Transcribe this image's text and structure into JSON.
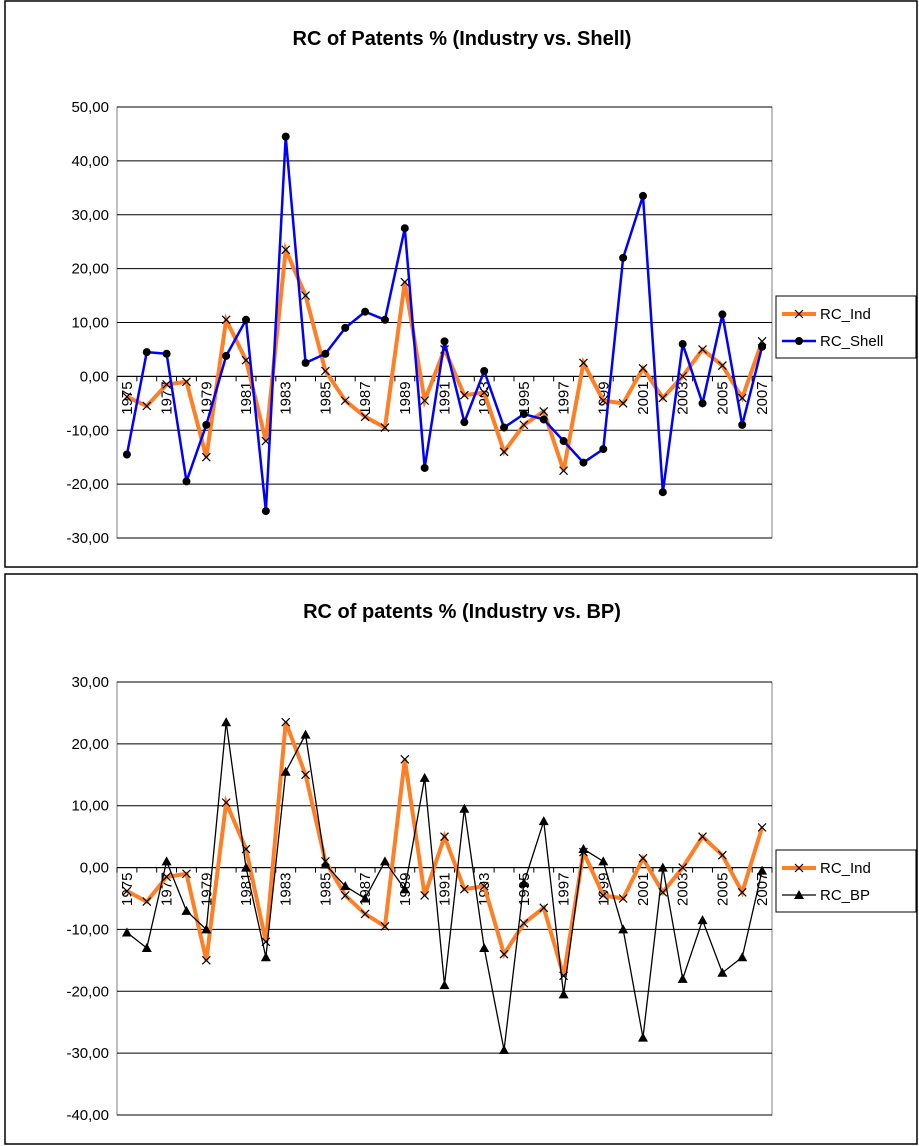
{
  "chart_data": [
    {
      "type": "line",
      "title": "RC of Patents % (Industry vs. Shell)",
      "xlabel": "",
      "ylabel": "",
      "ylim": [
        -30,
        50
      ],
      "ytick_step": 10,
      "ytick_labels": [
        "50,00",
        "40,00",
        "30,00",
        "20,00",
        "10,00",
        "0,00",
        "-10,00",
        "-20,00",
        "-30,00"
      ],
      "x": [
        1975,
        1976,
        1977,
        1978,
        1979,
        1980,
        1981,
        1982,
        1983,
        1984,
        1985,
        1986,
        1987,
        1988,
        1989,
        1990,
        1991,
        1992,
        1993,
        1994,
        1995,
        1996,
        1997,
        1998,
        1999,
        2000,
        2001,
        2002,
        2003,
        2004,
        2005,
        2006,
        2007
      ],
      "xtick_labels": [
        "1975",
        "1977",
        "1979",
        "1981",
        "1983",
        "1985",
        "1987",
        "1989",
        "1991",
        "1993",
        "1995",
        "1997",
        "1999",
        "2001",
        "2003",
        "2005",
        "2007"
      ],
      "grid": true,
      "legend_position": "right",
      "series": [
        {
          "name": "RC_Ind",
          "color": "#ff7f27",
          "marker": "x",
          "values": [
            -3.8,
            -5.5,
            -1.5,
            -1.0,
            -15.0,
            10.5,
            3.0,
            -12.0,
            23.5,
            15.0,
            1.0,
            -4.5,
            -7.5,
            -9.5,
            17.5,
            -4.5,
            5.0,
            -3.5,
            -3.0,
            -14.0,
            -9.0,
            -6.5,
            -17.5,
            2.5,
            -4.5,
            -5.0,
            1.5,
            -4.0,
            0.0,
            5.0,
            2.0,
            -4.0,
            6.5
          ]
        },
        {
          "name": "RC_Shell",
          "color": "#0000ff",
          "marker": "circle",
          "values": [
            -14.5,
            4.5,
            4.2,
            -19.5,
            -9.0,
            3.8,
            10.5,
            -25.0,
            44.5,
            2.5,
            4.2,
            9.0,
            12.0,
            10.5,
            27.5,
            -17.0,
            6.5,
            -8.5,
            1.0,
            -9.5,
            -7.0,
            -8.0,
            -12.0,
            -16.0,
            -13.5,
            22.0,
            33.5,
            -21.5,
            6.0,
            -5.0,
            11.5,
            -9.0,
            5.5
          ]
        }
      ]
    },
    {
      "type": "line",
      "title": "RC of patents % (Industry vs. BP)",
      "xlabel": "",
      "ylabel": "",
      "ylim": [
        -40,
        30
      ],
      "ytick_step": 10,
      "ytick_labels": [
        "30,00",
        "20,00",
        "10,00",
        "0,00",
        "-10,00",
        "-20,00",
        "-30,00",
        "-40,00"
      ],
      "x": [
        1975,
        1976,
        1977,
        1978,
        1979,
        1980,
        1981,
        1982,
        1983,
        1984,
        1985,
        1986,
        1987,
        1988,
        1989,
        1990,
        1991,
        1992,
        1993,
        1994,
        1995,
        1996,
        1997,
        1998,
        1999,
        2000,
        2001,
        2002,
        2003,
        2004,
        2005,
        2006,
        2007
      ],
      "xtick_labels": [
        "1975",
        "1977",
        "1979",
        "1981",
        "1983",
        "1985",
        "1987",
        "1989",
        "1991",
        "1993",
        "1995",
        "1997",
        "1999",
        "2001",
        "2003",
        "2005",
        "2007"
      ],
      "grid": true,
      "legend_position": "right",
      "series": [
        {
          "name": "RC_Ind",
          "color": "#ff7f27",
          "marker": "x",
          "values": [
            -3.8,
            -5.5,
            -1.5,
            -1.0,
            -15.0,
            10.5,
            3.0,
            -12.0,
            23.5,
            15.0,
            1.0,
            -4.5,
            -7.5,
            -9.5,
            17.5,
            -4.5,
            5.0,
            -3.5,
            -3.0,
            -14.0,
            -9.0,
            -6.5,
            -17.5,
            2.5,
            -4.5,
            -5.0,
            1.5,
            -4.0,
            0.0,
            5.0,
            2.0,
            -4.0,
            6.5
          ]
        },
        {
          "name": "RC_BP",
          "color": "#000000",
          "marker": "triangle",
          "values": [
            -10.5,
            -13.0,
            1.0,
            -7.0,
            -10.0,
            23.5,
            0.0,
            -14.5,
            15.5,
            21.5,
            0.5,
            -3.0,
            -5.0,
            1.0,
            -3.5,
            14.5,
            -19.0,
            9.5,
            -13.0,
            -29.5,
            -2.5,
            7.5,
            -20.5,
            3.0,
            1.0,
            -10.0,
            -27.5,
            0.0,
            -18.0,
            -8.5,
            -17.0,
            -14.5,
            -0.5
          ]
        }
      ]
    }
  ]
}
